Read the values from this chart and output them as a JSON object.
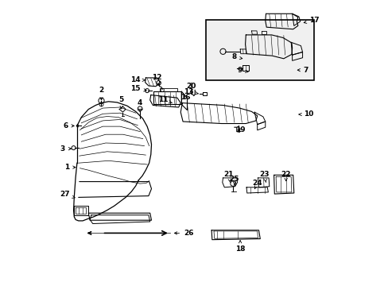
{
  "background_color": "#ffffff",
  "line_color": "#000000",
  "figsize": [
    4.89,
    3.6
  ],
  "dpi": 100,
  "labels": [
    [
      1,
      0.055,
      0.415,
      0.095,
      0.415
    ],
    [
      2,
      0.175,
      0.685,
      0.175,
      0.64
    ],
    [
      3,
      0.04,
      0.48,
      0.08,
      0.48
    ],
    [
      4,
      0.31,
      0.64,
      0.31,
      0.6
    ],
    [
      5,
      0.245,
      0.65,
      0.245,
      0.61
    ],
    [
      6,
      0.05,
      0.56,
      0.09,
      0.56
    ],
    [
      7,
      0.89,
      0.755,
      0.85,
      0.755
    ],
    [
      8,
      0.64,
      0.8,
      0.67,
      0.795
    ],
    [
      9,
      0.66,
      0.755,
      0.69,
      0.748
    ],
    [
      10,
      0.9,
      0.6,
      0.855,
      0.6
    ],
    [
      11,
      0.39,
      0.65,
      0.43,
      0.638
    ],
    [
      12,
      0.37,
      0.73,
      0.378,
      0.7
    ],
    [
      13,
      0.48,
      0.68,
      0.515,
      0.672
    ],
    [
      14,
      0.295,
      0.72,
      0.33,
      0.72
    ],
    [
      15,
      0.295,
      0.69,
      0.335,
      0.683
    ],
    [
      16,
      0.47,
      0.66,
      0.455,
      0.648
    ],
    [
      17,
      0.92,
      0.93,
      0.88,
      0.92
    ],
    [
      18,
      0.66,
      0.128,
      0.66,
      0.162
    ],
    [
      19,
      0.66,
      0.545,
      0.65,
      0.545
    ],
    [
      20,
      0.49,
      0.7,
      0.49,
      0.668
    ],
    [
      21,
      0.62,
      0.39,
      0.625,
      0.362
    ],
    [
      22,
      0.82,
      0.39,
      0.82,
      0.365
    ],
    [
      23,
      0.745,
      0.39,
      0.75,
      0.362
    ],
    [
      24,
      0.72,
      0.36,
      0.71,
      0.338
    ],
    [
      25,
      0.64,
      0.375,
      0.64,
      0.353
    ],
    [
      26,
      0.48,
      0.185,
      0.42,
      0.185
    ],
    [
      27,
      0.048,
      0.32,
      0.085,
      0.308
    ]
  ]
}
